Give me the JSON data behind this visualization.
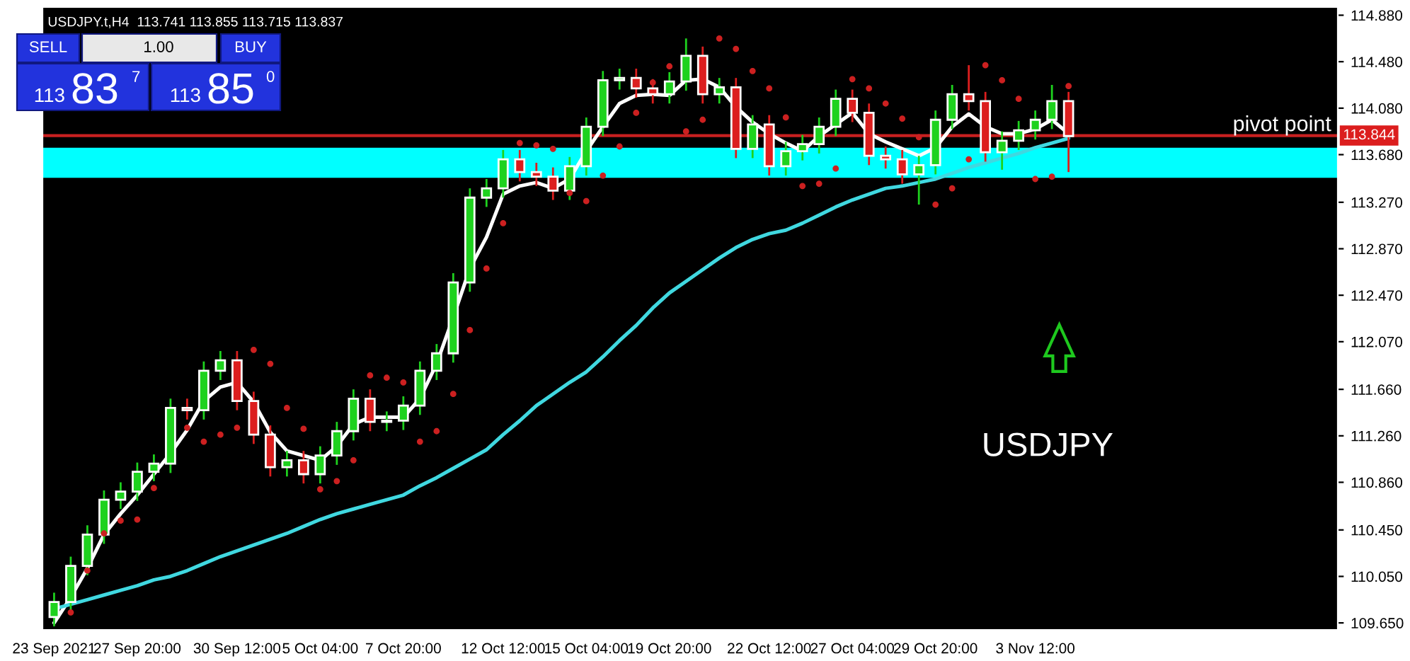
{
  "chart_data": {
    "type": "candlestick",
    "title": "USDJPY.t,H4  113.741 113.855 113.715 113.837",
    "annotations": [
      "SELL",
      "1.00",
      "BUY",
      "113",
      "83",
      "7",
      "113",
      "85",
      "0",
      "USDJPY",
      "113.844"
    ],
    "categories": [
      "23 Sep 2021",
      null,
      null,
      null,
      null,
      "27 Sep 20:00",
      null,
      null,
      null,
      null,
      null,
      "30 Sep 12:00",
      null,
      null,
      null,
      null,
      "5 Oct 04:00",
      null,
      null,
      null,
      null,
      "7 Oct 20:00",
      null,
      null,
      null,
      null,
      null,
      "12 Oct 12:00",
      null,
      null,
      null,
      null,
      "15 Oct 04:00",
      null,
      null,
      null,
      null,
      "19 Oct 20:00",
      null,
      null,
      null,
      null,
      null,
      "22 Oct 12:00",
      null,
      null,
      null,
      null,
      "27 Oct 04:00",
      null,
      null,
      null,
      null,
      "29 Oct 20:00",
      null,
      null,
      null,
      null,
      null,
      "3 Nov 12:00",
      null,
      null
    ],
    "ohlc": [
      [
        109.7,
        109.91,
        109.62,
        109.83
      ],
      [
        109.83,
        110.22,
        109.75,
        110.14
      ],
      [
        110.14,
        110.49,
        110.06,
        110.41
      ],
      [
        110.41,
        110.79,
        110.33,
        110.71
      ],
      [
        110.71,
        110.86,
        110.63,
        110.78
      ],
      [
        110.78,
        111.03,
        110.7,
        110.95
      ],
      [
        110.95,
        111.1,
        110.87,
        111.02
      ],
      [
        111.02,
        111.58,
        110.94,
        111.5
      ],
      [
        111.5,
        111.58,
        111.4,
        111.48
      ],
      [
        111.48,
        111.9,
        111.4,
        111.82
      ],
      [
        111.82,
        111.99,
        111.74,
        111.91
      ],
      [
        111.91,
        111.99,
        111.48,
        111.56
      ],
      [
        111.56,
        111.64,
        111.19,
        111.27
      ],
      [
        111.27,
        111.35,
        110.91,
        110.99
      ],
      [
        110.99,
        111.13,
        110.91,
        111.05
      ],
      [
        111.05,
        111.13,
        110.85,
        110.93
      ],
      [
        110.93,
        111.17,
        110.85,
        111.09
      ],
      [
        111.09,
        111.38,
        111.01,
        111.3
      ],
      [
        111.3,
        111.66,
        111.22,
        111.58
      ],
      [
        111.58,
        111.66,
        111.3,
        111.38
      ],
      [
        111.38,
        111.47,
        111.3,
        111.39
      ],
      [
        111.39,
        111.6,
        111.31,
        111.52
      ],
      [
        111.52,
        111.9,
        111.44,
        111.82
      ],
      [
        111.82,
        112.05,
        111.74,
        111.97
      ],
      [
        111.97,
        112.66,
        111.89,
        112.58
      ],
      [
        112.58,
        113.39,
        112.5,
        113.31
      ],
      [
        113.31,
        113.47,
        113.23,
        113.39
      ],
      [
        113.39,
        113.72,
        113.31,
        113.64
      ],
      [
        113.64,
        113.72,
        113.45,
        113.53
      ],
      [
        113.53,
        113.61,
        113.41,
        113.49
      ],
      [
        113.49,
        113.57,
        113.29,
        113.37
      ],
      [
        113.37,
        113.66,
        113.29,
        113.58
      ],
      [
        113.58,
        114.0,
        113.5,
        113.92
      ],
      [
        113.92,
        114.4,
        113.84,
        114.32
      ],
      [
        114.32,
        114.42,
        114.24,
        114.34
      ],
      [
        114.34,
        114.42,
        114.17,
        114.25
      ],
      [
        114.25,
        114.33,
        114.12,
        114.2
      ],
      [
        114.2,
        114.39,
        114.12,
        114.31
      ],
      [
        114.31,
        114.68,
        114.23,
        114.53
      ],
      [
        114.53,
        114.61,
        114.12,
        114.2
      ],
      [
        114.2,
        114.34,
        114.12,
        114.26
      ],
      [
        114.26,
        114.34,
        113.65,
        113.73
      ],
      [
        113.73,
        114.02,
        113.65,
        113.94
      ],
      [
        113.94,
        114.02,
        113.5,
        113.58
      ],
      [
        113.58,
        113.79,
        113.5,
        113.71
      ],
      [
        113.71,
        113.85,
        113.63,
        113.77
      ],
      [
        113.77,
        114.0,
        113.69,
        113.92
      ],
      [
        113.92,
        114.24,
        113.84,
        114.16
      ],
      [
        114.16,
        114.24,
        113.96,
        114.04
      ],
      [
        114.04,
        114.12,
        113.59,
        113.67
      ],
      [
        113.67,
        113.75,
        113.56,
        113.64
      ],
      [
        113.64,
        113.72,
        113.43,
        113.51
      ],
      [
        113.51,
        113.67,
        113.25,
        113.59
      ],
      [
        113.59,
        114.06,
        113.51,
        113.98
      ],
      [
        113.98,
        114.28,
        113.9,
        114.2
      ],
      [
        114.2,
        114.45,
        114.06,
        114.14
      ],
      [
        114.14,
        114.22,
        113.62,
        113.7
      ],
      [
        113.7,
        113.88,
        113.55,
        113.8
      ],
      [
        113.8,
        113.97,
        113.72,
        113.89
      ],
      [
        113.89,
        114.06,
        113.81,
        113.98
      ],
      [
        113.98,
        114.28,
        113.9,
        114.14
      ],
      [
        114.14,
        114.22,
        113.53,
        113.84
      ]
    ],
    "colors": [
      "#1ed21e",
      "#1ed21e",
      "#1ed21e",
      "#1ed21e",
      "#1ed21e",
      "#1ed21e",
      "#1ed21e",
      "#1ed21e",
      "#dc1e1e",
      "#1ed21e",
      "#1ed21e",
      "#dc1e1e",
      "#dc1e1e",
      "#dc1e1e",
      "#1ed21e",
      "#dc1e1e",
      "#1ed21e",
      "#1ed21e",
      "#1ed21e",
      "#dc1e1e",
      "#1ed21e",
      "#1ed21e",
      "#1ed21e",
      "#1ed21e",
      "#1ed21e",
      "#1ed21e",
      "#1ed21e",
      "#1ed21e",
      "#dc1e1e",
      "#dc1e1e",
      "#dc1e1e",
      "#1ed21e",
      "#1ed21e",
      "#1ed21e",
      "#1ed21e",
      "#dc1e1e",
      "#dc1e1e",
      "#1ed21e",
      "#1ed21e",
      "#dc1e1e",
      "#1ed21e",
      "#dc1e1e",
      "#1ed21e",
      "#dc1e1e",
      "#1ed21e",
      "#1ed21e",
      "#1ed21e",
      "#1ed21e",
      "#dc1e1e",
      "#dc1e1e",
      "#dc1e1e",
      "#dc1e1e",
      "#1ed21e",
      "#1ed21e",
      "#1ed21e",
      "#dc1e1e",
      "#dc1e1e",
      "#1ed21e",
      "#1ed21e",
      "#1ed21e",
      "#1ed21e",
      "#dc1e1e"
    ],
    "series": [
      {
        "type": "line",
        "color": "#ffffff",
        "values": [
          109.65,
          109.87,
          110.12,
          110.41,
          110.59,
          110.75,
          110.93,
          111.11,
          111.31,
          111.56,
          111.68,
          111.72,
          111.55,
          111.29,
          111.13,
          111.09,
          111.05,
          111.17,
          111.36,
          111.42,
          111.42,
          111.42,
          111.58,
          111.88,
          112.28,
          112.7,
          112.97,
          113.34,
          113.41,
          113.44,
          113.39,
          113.47,
          113.71,
          113.92,
          114.12,
          114.19,
          114.2,
          114.19,
          114.32,
          114.33,
          114.26,
          114.09,
          113.96,
          113.86,
          113.78,
          113.71,
          113.84,
          113.94,
          114.04,
          113.86,
          113.79,
          113.73,
          113.67,
          113.74,
          113.92,
          114.03,
          113.92,
          113.86,
          113.86,
          113.9,
          113.98,
          113.86
        ]
      },
      {
        "type": "line",
        "color": "#40d8e0",
        "values": [
          109.77,
          109.81,
          109.85,
          109.89,
          109.93,
          109.97,
          110.02,
          110.05,
          110.1,
          110.16,
          110.22,
          110.27,
          110.32,
          110.37,
          110.42,
          110.48,
          110.54,
          110.59,
          110.63,
          110.67,
          110.71,
          110.75,
          110.83,
          110.9,
          110.98,
          111.06,
          111.14,
          111.27,
          111.39,
          111.52,
          111.62,
          111.72,
          111.81,
          111.94,
          112.08,
          112.21,
          112.36,
          112.49,
          112.59,
          112.69,
          112.79,
          112.88,
          112.95,
          113.0,
          113.03,
          113.09,
          113.16,
          113.23,
          113.29,
          113.34,
          113.39,
          113.41,
          113.44,
          113.47,
          113.52,
          113.57,
          113.61,
          113.65,
          113.69,
          113.74,
          113.78,
          113.82
        ]
      },
      {
        "type": "scatter",
        "color": "#cc2020",
        "marker": "circle",
        "values": [
          null,
          109.74,
          110.1,
          110.42,
          110.53,
          110.54,
          110.81,
          null,
          111.33,
          111.21,
          111.27,
          111.33,
          112.0,
          111.88,
          111.5,
          111.32,
          110.8,
          110.87,
          111.05,
          111.78,
          111.76,
          111.72,
          111.21,
          111.3,
          111.62,
          112.17,
          112.7,
          113.09,
          113.78,
          113.76,
          113.73,
          113.35,
          113.28,
          113.5,
          113.75,
          114.04,
          114.3,
          114.44,
          113.88,
          113.98,
          114.68,
          114.59,
          114.4,
          114.25,
          114.0,
          113.41,
          113.43,
          113.56,
          114.33,
          114.25,
          114.12,
          113.99,
          113.83,
          113.25,
          113.39,
          113.64,
          114.45,
          114.32,
          114.16,
          113.47,
          113.49,
          114.27
        ]
      }
    ],
    "ylim": [
      109.59,
      114.95
    ],
    "yticks": [
      {
        "value": 109.65,
        "label": "109.650"
      },
      {
        "value": 110.05,
        "label": "110.050"
      },
      {
        "value": 110.45,
        "label": "110.450"
      },
      {
        "value": 110.86,
        "label": "110.860"
      },
      {
        "value": 111.26,
        "label": "111.260"
      },
      {
        "value": 111.66,
        "label": "111.660"
      },
      {
        "value": 112.07,
        "label": "112.070"
      },
      {
        "value": 112.47,
        "label": "112.470"
      },
      {
        "value": 112.87,
        "label": "112.870"
      },
      {
        "value": 113.27,
        "label": "113.270"
      },
      {
        "value": 113.68,
        "label": "113.680"
      },
      {
        "value": 114.08,
        "label": "114.080"
      },
      {
        "value": 114.48,
        "label": "114.480"
      },
      {
        "value": 114.88,
        "label": "114.880"
      }
    ],
    "ref_lines": [
      {
        "axis": "y",
        "value": 113.844,
        "label": "pivot point",
        "color": "#c82020"
      }
    ],
    "bands": [
      {
        "axis": "y",
        "from": 113.48,
        "to": 113.74,
        "color": "#00ffff"
      }
    ]
  }
}
